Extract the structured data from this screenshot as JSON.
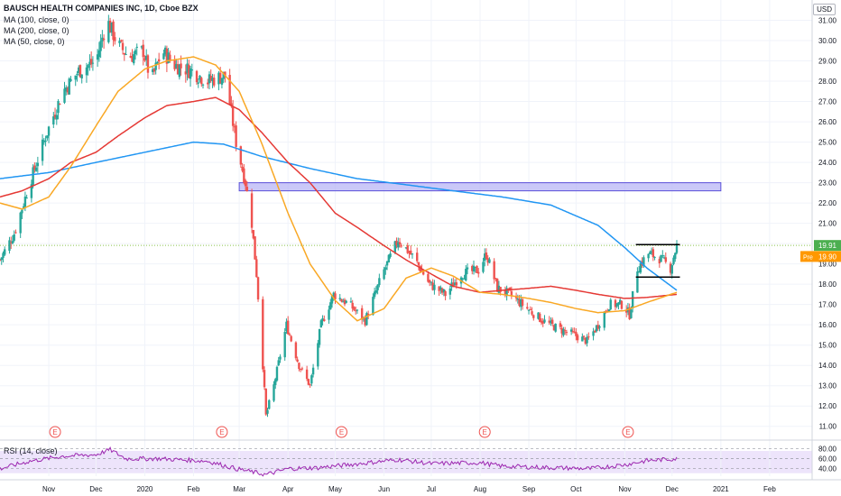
{
  "header": {
    "title": "BAUSCH HEALTH COMPANIES INC, 1D, Cboe BZX",
    "indicators": [
      "MA (100, close, 0)",
      "MA (200, close, 0)",
      "MA (50, close, 0)"
    ],
    "currency": "USD"
  },
  "rsi_panel": {
    "label": "RSI (14, close)",
    "ticks": [
      "80.00",
      "60.00",
      "40.00"
    ]
  },
  "price_tags": {
    "last": "19.91",
    "pre_label": "Pre",
    "pre_value": "19.90"
  },
  "earnings_marker": "E",
  "colors": {
    "up": "#26a69a",
    "down": "#ef5350",
    "ma100": "#e53935",
    "ma200": "#2196f3",
    "ma50": "#f9a825",
    "rsi": "#9c27b0",
    "zone_fill": "#b3b0f5",
    "zone_stroke": "#5a50d8",
    "last_price": "#4caf50",
    "pre_price": "#ff9800"
  },
  "chart_data": {
    "type": "candlestick",
    "ylim": [
      10.5,
      32.0
    ],
    "y_ticks": [
      "11.00",
      "12.00",
      "13.00",
      "14.00",
      "15.00",
      "16.00",
      "17.00",
      "18.00",
      "19.00",
      "20.00",
      "21.00",
      "22.00",
      "23.00",
      "24.00",
      "25.00",
      "26.00",
      "27.00",
      "28.00",
      "29.00",
      "30.00",
      "31.00"
    ],
    "x_ticks": [
      "Nov",
      "Dec",
      "2020",
      "Feb",
      "Mar",
      "Apr",
      "May",
      "Jun",
      "Jul",
      "Aug",
      "Sep",
      "Oct",
      "Nov",
      "Dec",
      "2021",
      "Feb"
    ],
    "close_anchors": [
      [
        "2019-10-01",
        19.2
      ],
      [
        "2019-10-10",
        20.5
      ],
      [
        "2019-10-20",
        23.0
      ],
      [
        "2019-10-31",
        25.5
      ],
      [
        "2019-11-10",
        27.5
      ],
      [
        "2019-11-20",
        28.5
      ],
      [
        "2019-12-01",
        29.0
      ],
      [
        "2019-12-08",
        31.0
      ],
      [
        "2019-12-15",
        29.8
      ],
      [
        "2019-12-22",
        29.2
      ],
      [
        "2019-12-31",
        29.5
      ],
      [
        "2020-01-05",
        28.0
      ],
      [
        "2020-01-12",
        29.5
      ],
      [
        "2020-01-20",
        28.8
      ],
      [
        "2020-01-31",
        28.5
      ],
      [
        "2020-02-10",
        28.0
      ],
      [
        "2020-02-21",
        28.3
      ],
      [
        "2020-02-28",
        25.0
      ],
      [
        "2020-03-05",
        23.0
      ],
      [
        "2020-03-09",
        21.0
      ],
      [
        "2020-03-12",
        18.5
      ],
      [
        "2020-03-16",
        14.0
      ],
      [
        "2020-03-18",
        11.5
      ],
      [
        "2020-03-23",
        13.0
      ],
      [
        "2020-03-31",
        16.0
      ],
      [
        "2020-04-08",
        14.0
      ],
      [
        "2020-04-15",
        13.0
      ],
      [
        "2020-04-22",
        16.0
      ],
      [
        "2020-04-30",
        17.5
      ],
      [
        "2020-05-10",
        17.0
      ],
      [
        "2020-05-20",
        16.2
      ],
      [
        "2020-05-31",
        18.5
      ],
      [
        "2020-06-10",
        20.2
      ],
      [
        "2020-06-20",
        19.3
      ],
      [
        "2020-06-30",
        18.0
      ],
      [
        "2020-07-10",
        17.5
      ],
      [
        "2020-07-20",
        18.5
      ],
      [
        "2020-07-31",
        18.7
      ],
      [
        "2020-08-05",
        19.5
      ],
      [
        "2020-08-12",
        17.8
      ],
      [
        "2020-08-20",
        17.5
      ],
      [
        "2020-08-31",
        16.8
      ],
      [
        "2020-09-10",
        16.2
      ],
      [
        "2020-09-20",
        15.8
      ],
      [
        "2020-09-30",
        15.5
      ],
      [
        "2020-10-08",
        15.2
      ],
      [
        "2020-10-15",
        16.0
      ],
      [
        "2020-10-22",
        17.0
      ],
      [
        "2020-10-31",
        17.0
      ],
      [
        "2020-11-04",
        16.5
      ],
      [
        "2020-11-09",
        18.8
      ],
      [
        "2020-11-16",
        19.5
      ],
      [
        "2020-11-23",
        19.3
      ],
      [
        "2020-11-30",
        18.8
      ],
      [
        "2020-12-04",
        19.91
      ]
    ],
    "ma100_anchors": [
      [
        "2019-10-01",
        22.3
      ],
      [
        "2019-10-15",
        22.6
      ],
      [
        "2019-11-01",
        23.2
      ],
      [
        "2019-11-15",
        24.0
      ],
      [
        "2019-12-01",
        24.5
      ],
      [
        "2019-12-15",
        25.3
      ],
      [
        "2020-01-01",
        26.2
      ],
      [
        "2020-01-15",
        26.8
      ],
      [
        "2020-02-01",
        27.0
      ],
      [
        "2020-02-15",
        27.2
      ],
      [
        "2020-03-01",
        26.6
      ],
      [
        "2020-03-15",
        25.5
      ],
      [
        "2020-04-01",
        24.0
      ],
      [
        "2020-04-15",
        23.0
      ],
      [
        "2020-05-01",
        21.5
      ],
      [
        "2020-05-15",
        20.8
      ],
      [
        "2020-06-01",
        19.9
      ],
      [
        "2020-06-15",
        19.2
      ],
      [
        "2020-07-01",
        18.5
      ],
      [
        "2020-07-15",
        17.9
      ],
      [
        "2020-08-01",
        17.6
      ],
      [
        "2020-08-15",
        17.7
      ],
      [
        "2020-09-01",
        17.8
      ],
      [
        "2020-09-15",
        17.9
      ],
      [
        "2020-10-01",
        17.7
      ],
      [
        "2020-10-15",
        17.5
      ],
      [
        "2020-11-01",
        17.3
      ],
      [
        "2020-11-15",
        17.35
      ],
      [
        "2020-12-04",
        17.5
      ]
    ],
    "ma200_anchors": [
      [
        "2019-10-01",
        23.2
      ],
      [
        "2019-11-01",
        23.5
      ],
      [
        "2019-12-01",
        24.0
      ],
      [
        "2020-01-01",
        24.5
      ],
      [
        "2020-02-01",
        25.0
      ],
      [
        "2020-02-20",
        24.9
      ],
      [
        "2020-03-15",
        24.3
      ],
      [
        "2020-04-15",
        23.7
      ],
      [
        "2020-05-15",
        23.2
      ],
      [
        "2020-06-15",
        22.9
      ],
      [
        "2020-07-15",
        22.6
      ],
      [
        "2020-08-15",
        22.3
      ],
      [
        "2020-09-15",
        21.9
      ],
      [
        "2020-10-15",
        20.9
      ],
      [
        "2020-11-01",
        19.8
      ],
      [
        "2020-11-15",
        18.8
      ],
      [
        "2020-12-04",
        17.7
      ]
    ],
    "ma50_anchors": [
      [
        "2019-10-01",
        22.0
      ],
      [
        "2019-10-15",
        21.7
      ],
      [
        "2019-11-01",
        22.3
      ],
      [
        "2019-11-15",
        23.8
      ],
      [
        "2019-12-01",
        25.8
      ],
      [
        "2019-12-15",
        27.5
      ],
      [
        "2020-01-01",
        28.6
      ],
      [
        "2020-01-15",
        29.0
      ],
      [
        "2020-02-01",
        29.2
      ],
      [
        "2020-02-15",
        28.8
      ],
      [
        "2020-03-01",
        27.5
      ],
      [
        "2020-03-15",
        25.0
      ],
      [
        "2020-04-01",
        21.5
      ],
      [
        "2020-04-15",
        19.0
      ],
      [
        "2020-05-01",
        17.2
      ],
      [
        "2020-05-15",
        16.2
      ],
      [
        "2020-06-01",
        16.8
      ],
      [
        "2020-06-15",
        18.3
      ],
      [
        "2020-07-01",
        18.8
      ],
      [
        "2020-07-15",
        18.4
      ],
      [
        "2020-08-01",
        17.6
      ],
      [
        "2020-08-15",
        17.5
      ],
      [
        "2020-09-01",
        17.3
      ],
      [
        "2020-09-15",
        17.1
      ],
      [
        "2020-10-01",
        16.8
      ],
      [
        "2020-10-15",
        16.6
      ],
      [
        "2020-11-01",
        16.7
      ],
      [
        "2020-11-15",
        17.1
      ],
      [
        "2020-12-04",
        17.6
      ]
    ],
    "rsi_anchors": [
      [
        "2019-10-01",
        40
      ],
      [
        "2019-10-20",
        55
      ],
      [
        "2019-11-10",
        65
      ],
      [
        "2019-12-01",
        68
      ],
      [
        "2019-12-10",
        78
      ],
      [
        "2019-12-20",
        60
      ],
      [
        "2020-01-10",
        60
      ],
      [
        "2020-02-10",
        55
      ],
      [
        "2020-02-28",
        40
      ],
      [
        "2020-03-18",
        28
      ],
      [
        "2020-04-01",
        40
      ],
      [
        "2020-04-20",
        42
      ],
      [
        "2020-05-10",
        48
      ],
      [
        "2020-06-10",
        58
      ],
      [
        "2020-07-01",
        50
      ],
      [
        "2020-08-01",
        52
      ],
      [
        "2020-08-15",
        45
      ],
      [
        "2020-09-15",
        42
      ],
      [
        "2020-10-10",
        40
      ],
      [
        "2020-11-01",
        48
      ],
      [
        "2020-11-15",
        56
      ],
      [
        "2020-12-04",
        60
      ]
    ],
    "resistance_zone": {
      "start": "2020-03-01",
      "end": "2021-01-01",
      "low": 22.6,
      "high": 23.0
    },
    "range_lines": [
      {
        "start": "2020-11-08",
        "end": "2020-12-06",
        "value": 19.95
      },
      {
        "start": "2020-11-08",
        "end": "2020-12-06",
        "value": 18.35
      }
    ],
    "earnings_dates": [
      "2019-11-05",
      "2020-02-19",
      "2020-05-05",
      "2020-08-04",
      "2020-11-03"
    ]
  }
}
